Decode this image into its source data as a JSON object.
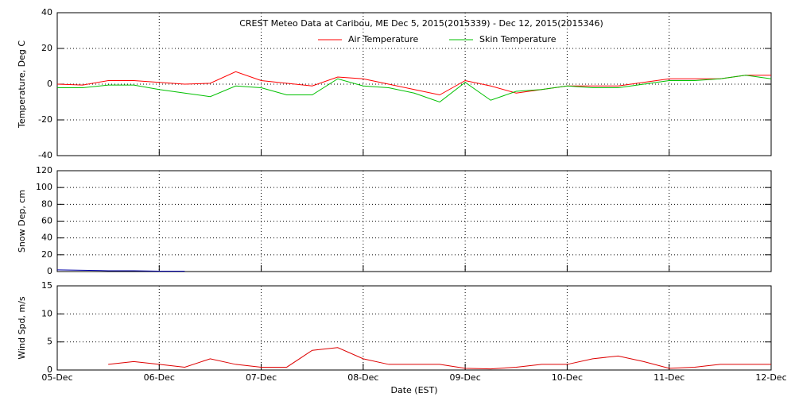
{
  "chart_data": [
    {
      "type": "line",
      "title": "CREST Meteo Data at Caribou, ME   Dec  5, 2015(2015339) - Dec 12, 2015(2015346)",
      "ylabel": "Temperature, Deg C",
      "xlim": [
        0,
        7
      ],
      "xticks": [
        0,
        1,
        2,
        3,
        4,
        5,
        6,
        7
      ],
      "ylim": [
        -40,
        40
      ],
      "yticks": [
        -40,
        -20,
        0,
        20,
        40
      ],
      "grid": true,
      "legend": "top",
      "x": [
        0,
        0.25,
        0.5,
        0.75,
        1,
        1.25,
        1.5,
        1.75,
        2,
        2.25,
        2.5,
        2.75,
        3,
        3.25,
        3.5,
        3.75,
        4,
        4.25,
        4.5,
        4.75,
        5,
        5.25,
        5.5,
        5.75,
        6,
        6.25,
        6.5,
        6.75,
        7
      ],
      "series": [
        {
          "name": "Air Temperature",
          "color": "#ff0000",
          "values": [
            0,
            -0.5,
            2,
            2,
            1,
            0,
            0.5,
            7,
            2,
            0.5,
            -1,
            4,
            3,
            0,
            -3,
            -6,
            2,
            -1,
            -5,
            -3,
            -1,
            -1,
            -1,
            1,
            3,
            3,
            3,
            5,
            5
          ]
        },
        {
          "name": "Skin Temperature",
          "color": "#00c000",
          "values": [
            -2,
            -2,
            -0.5,
            -0.5,
            -3,
            -5,
            -7,
            -1,
            -2,
            -6,
            -6,
            3,
            -1,
            -2,
            -5,
            -10,
            1,
            -9,
            -4,
            -3,
            -1,
            -2,
            -2,
            0,
            2,
            2,
            3,
            5,
            3
          ]
        }
      ]
    },
    {
      "type": "line",
      "ylabel": "Snow Dep, cm",
      "xlim": [
        0,
        7
      ],
      "xticks": [
        0,
        1,
        2,
        3,
        4,
        5,
        6,
        7
      ],
      "ylim": [
        0,
        120
      ],
      "yticks": [
        0,
        20,
        40,
        60,
        80,
        100,
        120
      ],
      "grid": true,
      "x": [
        0,
        0.25,
        0.5,
        0.75,
        1.0,
        1.25
      ],
      "series": [
        {
          "color": "#0000aa",
          "values": [
            2,
            1.5,
            1,
            1,
            0.5,
            0.5
          ]
        }
      ]
    },
    {
      "type": "line",
      "ylabel": "Wind Spd, m/s",
      "xlabel": "Date (EST)",
      "xlim": [
        0,
        7
      ],
      "xticks": [
        {
          "value": 0,
          "label": "05-Dec"
        },
        {
          "value": 1,
          "label": "06-Dec"
        },
        {
          "value": 2,
          "label": "07-Dec"
        },
        {
          "value": 3,
          "label": "08-Dec"
        },
        {
          "value": 4,
          "label": "09-Dec"
        },
        {
          "value": 5,
          "label": "10-Dec"
        },
        {
          "value": 6,
          "label": "11-Dec"
        },
        {
          "value": 7,
          "label": "12-Dec"
        }
      ],
      "ylim": [
        0,
        15
      ],
      "yticks": [
        0,
        5,
        10,
        15
      ],
      "grid": true,
      "x": [
        0.5,
        0.75,
        1,
        1.25,
        1.5,
        1.75,
        2,
        2.25,
        2.5,
        2.75,
        3,
        3.25,
        3.5,
        3.75,
        4,
        4.25,
        4.5,
        4.75,
        5,
        5.25,
        5.5,
        5.75,
        6,
        6.25,
        6.5,
        6.75,
        7
      ],
      "series": [
        {
          "color": "#dd0000",
          "values": [
            1,
            1.5,
            1,
            0.5,
            2,
            1,
            0.5,
            0.5,
            3.5,
            4,
            2,
            1,
            1,
            1,
            0.3,
            0.2,
            0.5,
            1,
            1,
            2,
            2.5,
            1.5,
            0.3,
            0.5,
            1,
            1,
            1
          ]
        }
      ]
    }
  ]
}
